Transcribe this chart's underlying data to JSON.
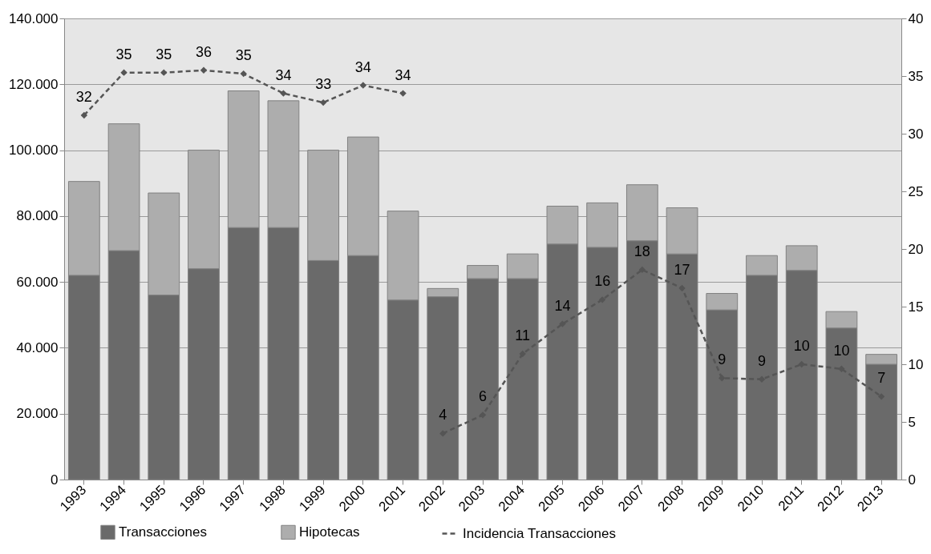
{
  "chart_data": {
    "type": "bar",
    "stacked": true,
    "legend": "bottom",
    "grid": "y",
    "categories": [
      "1993",
      "1994",
      "1995",
      "1996",
      "1997",
      "1998",
      "1999",
      "2000",
      "2001",
      "2002",
      "2003",
      "2004",
      "2005",
      "2006",
      "2007",
      "2008",
      "2009",
      "2010",
      "2011",
      "2012",
      "2013"
    ],
    "series": [
      {
        "name": "Transacciones",
        "color": "#6a6a6a",
        "values": [
          62000,
          69500,
          56000,
          64000,
          76500,
          76500,
          66500,
          68000,
          54500,
          55500,
          61000,
          61000,
          71500,
          70500,
          72500,
          68500,
          51500,
          62000,
          63500,
          46000,
          35000
        ]
      },
      {
        "name": "Hipotecas",
        "color": "#adadad",
        "values": [
          28500,
          38500,
          31000,
          36000,
          41500,
          38500,
          33500,
          36000,
          27000,
          2500,
          4000,
          7500,
          11500,
          13500,
          17000,
          14000,
          5000,
          6000,
          7500,
          5000,
          3000
        ]
      },
      {
        "name": "Incidencia Transacciones",
        "type": "line",
        "axis": "y2",
        "color": "#555555",
        "line_style": "dashed",
        "marker": "diamond",
        "values": [
          31.6,
          35.3,
          35.3,
          35.5,
          35.2,
          33.5,
          32.7,
          34.2,
          33.5,
          null,
          null,
          null,
          null,
          null,
          null,
          null,
          null,
          null,
          null,
          null,
          null
        ],
        "value_labels": [
          "32",
          "35",
          "35",
          "36",
          "35",
          "34",
          "33",
          "34",
          "34",
          null,
          null,
          null,
          null,
          null,
          null,
          null,
          null,
          null,
          null,
          null,
          null
        ]
      },
      {
        "type": "line",
        "axis": "y2",
        "color": "#555555",
        "line_style": "dashed",
        "marker": "diamond",
        "values": [
          null,
          null,
          null,
          null,
          null,
          null,
          null,
          null,
          null,
          4.0,
          5.6,
          10.9,
          13.5,
          15.6,
          18.2,
          16.6,
          8.8,
          8.7,
          10.0,
          9.6,
          7.2
        ],
        "value_labels": [
          null,
          null,
          null,
          null,
          null,
          null,
          null,
          null,
          null,
          "4",
          "6",
          "11",
          "14",
          "16",
          "18",
          "17",
          "9",
          "9",
          "10",
          "10",
          "7"
        ]
      }
    ],
    "ylim": [
      0,
      140000
    ],
    "yticks": [
      0,
      {
        "value": 20000,
        "label": "20.000"
      },
      {
        "value": 40000,
        "label": "40.000"
      },
      {
        "value": 60000,
        "label": "60.000"
      },
      {
        "value": 80000,
        "label": "80.000"
      },
      {
        "value": 100000,
        "label": "100.000"
      },
      {
        "value": 120000,
        "label": "120.000"
      },
      {
        "value": 140000,
        "label": "140.000"
      }
    ],
    "y2lim": [
      0,
      40
    ],
    "y2ticks": [
      0,
      5,
      10,
      15,
      20,
      25,
      30,
      35,
      40
    ]
  }
}
